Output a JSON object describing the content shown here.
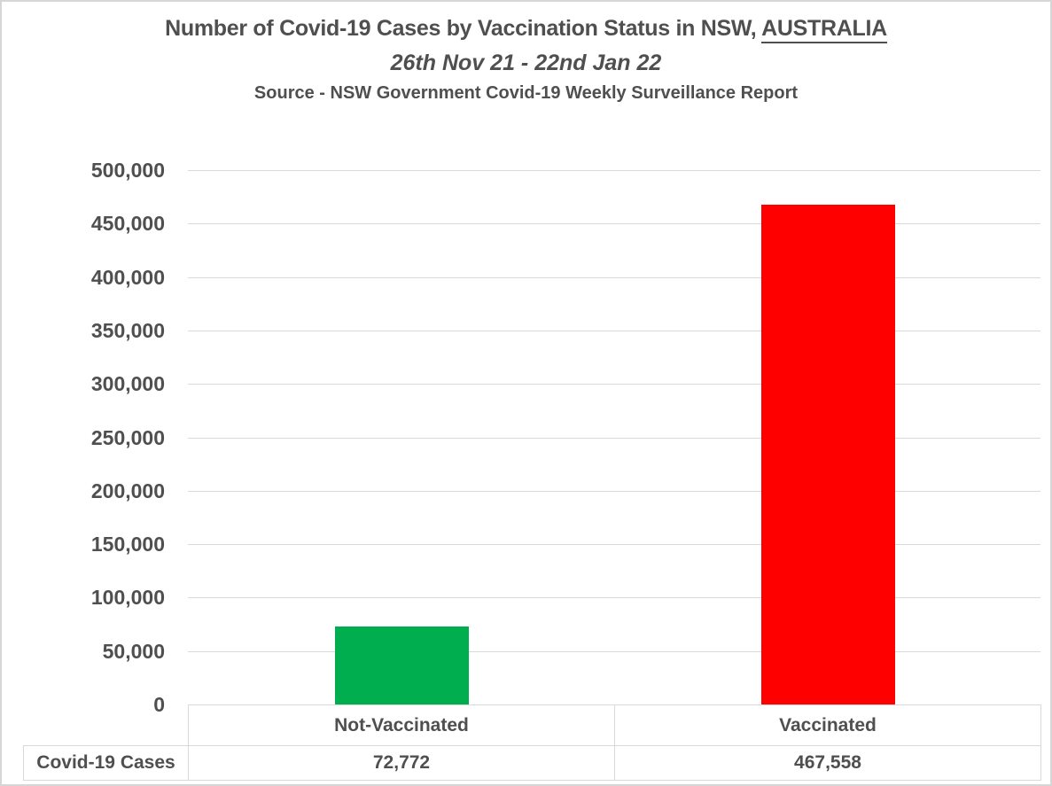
{
  "title": {
    "main_prefix": "Number of Covid-19 Cases by Vaccination Status in NSW, ",
    "main_underlined": "AUSTRALIA",
    "subtitle": "26th Nov 21 - 22nd Jan 22",
    "source": "Source - NSW Government Covid-19 Weekly Surveillance Report"
  },
  "chart_data": {
    "type": "bar",
    "title": "Number of Covid-19 Cases by Vaccination Status in NSW, AUSTRALIA",
    "subtitle": "26th Nov 21 - 22nd Jan 22",
    "source": "Source - NSW Government Covid-19 Weekly Surveillance Report",
    "categories": [
      "Not-Vaccinated",
      "Vaccinated"
    ],
    "series": [
      {
        "name": "Covid-19 Cases",
        "values": [
          72772,
          467558
        ]
      }
    ],
    "value_labels": [
      "72,772",
      "467,558"
    ],
    "bar_colors": [
      "#00AE50",
      "#FF0000"
    ],
    "ylim": [
      0,
      500000
    ],
    "ytick_step": 50000,
    "ytick_labels": [
      "0",
      "50,000",
      "100,000",
      "150,000",
      "200,000",
      "250,000",
      "300,000",
      "350,000",
      "400,000",
      "450,000",
      "500,000"
    ],
    "grid": true,
    "legend": "none"
  },
  "table": {
    "row_header": "Covid-19 Cases",
    "category_row": [
      "Not-Vaccinated",
      "Vaccinated"
    ],
    "value_row": [
      "72,772",
      "467,558"
    ]
  },
  "colors": {
    "text": "#4f4f4f",
    "gridline": "#d9d9d9",
    "table_border": "#d9d9d9",
    "bar_not_vaccinated": "#00AE50",
    "bar_vaccinated": "#FF0000",
    "background": "#ffffff",
    "frame_border": "#d6d6d6"
  }
}
